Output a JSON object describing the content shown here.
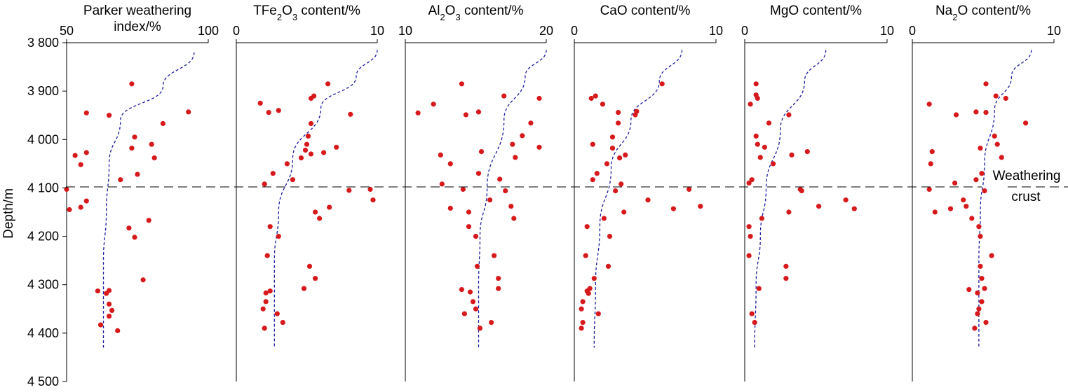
{
  "figure": {
    "y_axis_label": "Depth/m",
    "boundary_label_line1": "Weathering",
    "boundary_label_line2": "crust",
    "boundary_depth": 4100,
    "y_ticks": [
      "3 800",
      "3 900",
      "4 000",
      "4 100",
      "4 200",
      "4 300",
      "4 400",
      "4 500"
    ],
    "colors": {
      "points": "#d7191c",
      "trend": "#1a1aa0",
      "axes": "#000000"
    }
  },
  "chart_data": [
    {
      "type": "scatter",
      "title_parts": [
        {
          "t": "Parker weathering"
        }
      ],
      "title_line2": "index/%",
      "xlim": [
        50,
        100
      ],
      "x_ticks": [
        "50",
        "100"
      ],
      "ylim": [
        3800,
        4500
      ],
      "points": [
        [
          73,
          3885
        ],
        [
          57,
          3945
        ],
        [
          65,
          3950
        ],
        [
          93,
          3943
        ],
        [
          84,
          3967
        ],
        [
          74,
          3995
        ],
        [
          80,
          4010
        ],
        [
          73,
          4018
        ],
        [
          57,
          4027
        ],
        [
          81,
          4038
        ],
        [
          53,
          4033
        ],
        [
          55,
          4052
        ],
        [
          75,
          4072
        ],
        [
          69,
          4083
        ],
        [
          50,
          4103
        ],
        [
          57,
          4127
        ],
        [
          55,
          4140
        ],
        [
          51,
          4145
        ],
        [
          79,
          4167
        ],
        [
          72,
          4183
        ],
        [
          74,
          4202
        ],
        [
          77,
          4290
        ],
        [
          65,
          4312
        ],
        [
          61,
          4313
        ],
        [
          64,
          4318
        ],
        [
          65,
          4340
        ],
        [
          66,
          4353
        ],
        [
          65,
          4365
        ],
        [
          62,
          4383
        ],
        [
          68,
          4395
        ]
      ],
      "trend": [
        [
          95,
          3820
        ],
        [
          84,
          3890
        ],
        [
          69,
          3960
        ],
        [
          65,
          4050
        ],
        [
          64,
          4150
        ],
        [
          63,
          4250
        ],
        [
          63,
          4430
        ]
      ]
    },
    {
      "type": "scatter",
      "title_parts": [
        {
          "t": "TFe"
        },
        {
          "t": "2",
          "sub": true
        },
        {
          "t": "O"
        },
        {
          "t": "3",
          "sub": true
        },
        {
          "t": " content/%"
        }
      ],
      "xlim": [
        0,
        10
      ],
      "x_ticks": [
        "0",
        "10"
      ],
      "ylim": [
        3800,
        4500
      ],
      "points": [
        [
          6.5,
          3885
        ],
        [
          5.5,
          3910
        ],
        [
          5.3,
          3915
        ],
        [
          1.7,
          3925
        ],
        [
          3.0,
          3940
        ],
        [
          2.3,
          3944
        ],
        [
          8.1,
          3948
        ],
        [
          5.3,
          3967
        ],
        [
          5.1,
          3993
        ],
        [
          5.0,
          4010
        ],
        [
          7.1,
          4016
        ],
        [
          4.9,
          4022
        ],
        [
          6.2,
          4027
        ],
        [
          5.3,
          4030
        ],
        [
          4.6,
          4038
        ],
        [
          3.6,
          4050
        ],
        [
          2.6,
          4070
        ],
        [
          4.0,
          4083
        ],
        [
          2.0,
          4092
        ],
        [
          8.0,
          4105
        ],
        [
          9.5,
          4103
        ],
        [
          9.7,
          4125
        ],
        [
          6.6,
          4140
        ],
        [
          5.6,
          4150
        ],
        [
          5.9,
          4163
        ],
        [
          2.4,
          4180
        ],
        [
          3.0,
          4200
        ],
        [
          2.2,
          4240
        ],
        [
          5.2,
          4262
        ],
        [
          5.6,
          4287
        ],
        [
          4.8,
          4308
        ],
        [
          2.4,
          4313
        ],
        [
          2.1,
          4317
        ],
        [
          2.1,
          4335
        ],
        [
          1.9,
          4350
        ],
        [
          2.9,
          4360
        ],
        [
          2.0,
          4390
        ],
        [
          3.3,
          4378
        ]
      ],
      "trend": [
        [
          10,
          3815
        ],
        [
          8.5,
          3870
        ],
        [
          6,
          3935
        ],
        [
          4,
          4040
        ],
        [
          3,
          4150
        ],
        [
          2.7,
          4250
        ],
        [
          2.7,
          4430
        ]
      ]
    },
    {
      "type": "scatter",
      "title_parts": [
        {
          "t": "Al"
        },
        {
          "t": "2",
          "sub": true
        },
        {
          "t": "O"
        },
        {
          "t": "3",
          "sub": true
        },
        {
          "t": " content/%"
        }
      ],
      "xlim": [
        10,
        20
      ],
      "x_ticks": [
        "10",
        "20"
      ],
      "ylim": [
        3800,
        4500
      ],
      "points": [
        [
          14,
          3885
        ],
        [
          17,
          3910
        ],
        [
          19.5,
          3915
        ],
        [
          12,
          3927
        ],
        [
          10.9,
          3945
        ],
        [
          15.2,
          3943
        ],
        [
          14.3,
          3949
        ],
        [
          18.9,
          3966
        ],
        [
          18.3,
          3992
        ],
        [
          17.6,
          4010
        ],
        [
          19.5,
          4016
        ],
        [
          15.4,
          4025
        ],
        [
          17.8,
          4037
        ],
        [
          12.5,
          4032
        ],
        [
          13.2,
          4050
        ],
        [
          15.2,
          4070
        ],
        [
          16.7,
          4082
        ],
        [
          12.6,
          4092
        ],
        [
          14.1,
          4103
        ],
        [
          17.1,
          4106
        ],
        [
          16,
          4125
        ],
        [
          13.2,
          4142
        ],
        [
          14.5,
          4150
        ],
        [
          17.5,
          4138
        ],
        [
          17.7,
          4163
        ],
        [
          14.5,
          4180
        ],
        [
          15,
          4200
        ],
        [
          16.3,
          4240
        ],
        [
          15.1,
          4262
        ],
        [
          16.6,
          4287
        ],
        [
          14,
          4310
        ],
        [
          16.6,
          4308
        ],
        [
          14.6,
          4315
        ],
        [
          14.8,
          4335
        ],
        [
          15,
          4350
        ],
        [
          14.2,
          4360
        ],
        [
          16.1,
          4378
        ],
        [
          15.3,
          4390
        ]
      ],
      "trend": [
        [
          20,
          3815
        ],
        [
          18.5,
          3870
        ],
        [
          17,
          3960
        ],
        [
          15.8,
          4100
        ],
        [
          15.3,
          4200
        ],
        [
          15.2,
          4300
        ],
        [
          15.2,
          4430
        ]
      ]
    },
    {
      "type": "scatter",
      "title_parts": [
        {
          "t": "CaO content/%"
        }
      ],
      "xlim": [
        0,
        10
      ],
      "x_ticks": [
        "0",
        "10"
      ],
      "ylim": [
        3800,
        4500
      ],
      "points": [
        [
          6.2,
          3885
        ],
        [
          1.5,
          3910
        ],
        [
          1.2,
          3915
        ],
        [
          2.0,
          3927
        ],
        [
          4.4,
          3942
        ],
        [
          3.1,
          3944
        ],
        [
          4.3,
          3949
        ],
        [
          3.1,
          3966
        ],
        [
          2.7,
          3995
        ],
        [
          1.3,
          4010
        ],
        [
          2.7,
          4018
        ],
        [
          3.6,
          4032
        ],
        [
          3.2,
          4038
        ],
        [
          2.3,
          4050
        ],
        [
          1.6,
          4070
        ],
        [
          1.3,
          4083
        ],
        [
          3.3,
          4092
        ],
        [
          2.9,
          4106
        ],
        [
          8.1,
          4103
        ],
        [
          5.2,
          4125
        ],
        [
          8.9,
          4138
        ],
        [
          7.0,
          4143
        ],
        [
          3.5,
          4150
        ],
        [
          2.1,
          4163
        ],
        [
          0.9,
          4180
        ],
        [
          2.5,
          4200
        ],
        [
          0.8,
          4240
        ],
        [
          2.4,
          4262
        ],
        [
          1.4,
          4287
        ],
        [
          1.1,
          4308
        ],
        [
          0.9,
          4313
        ],
        [
          1.0,
          4318
        ],
        [
          0.6,
          4335
        ],
        [
          0.5,
          4350
        ],
        [
          1.7,
          4360
        ],
        [
          0.6,
          4378
        ],
        [
          0.5,
          4390
        ]
      ],
      "trend": [
        [
          7.6,
          3815
        ],
        [
          6,
          3880
        ],
        [
          4,
          3960
        ],
        [
          2.6,
          4060
        ],
        [
          1.8,
          4180
        ],
        [
          1.5,
          4300
        ],
        [
          1.4,
          4430
        ]
      ]
    },
    {
      "type": "scatter",
      "title_parts": [
        {
          "t": "MgO content/%"
        }
      ],
      "xlim": [
        0,
        10
      ],
      "x_ticks": [
        "0",
        "10"
      ],
      "ylim": [
        3800,
        4500
      ],
      "points": [
        [
          0.8,
          3885
        ],
        [
          0.8,
          3908
        ],
        [
          0.9,
          3915
        ],
        [
          0.4,
          3927
        ],
        [
          3.1,
          3949
        ],
        [
          1.7,
          3966
        ],
        [
          0.8,
          3993
        ],
        [
          0.9,
          4010
        ],
        [
          1.4,
          4016
        ],
        [
          4.4,
          4025
        ],
        [
          3.3,
          4032
        ],
        [
          1.1,
          4037
        ],
        [
          2.0,
          4050
        ],
        [
          0.5,
          4083
        ],
        [
          0.3,
          4090
        ],
        [
          3.9,
          4103
        ],
        [
          4.0,
          4106
        ],
        [
          7.1,
          4125
        ],
        [
          5.2,
          4138
        ],
        [
          7.7,
          4143
        ],
        [
          3.1,
          4150
        ],
        [
          1.2,
          4163
        ],
        [
          0.3,
          4180
        ],
        [
          0.4,
          4200
        ],
        [
          0.3,
          4240
        ],
        [
          2.9,
          4262
        ],
        [
          2.9,
          4287
        ],
        [
          1.0,
          4308
        ],
        [
          0.5,
          4360
        ],
        [
          0.7,
          4378
        ]
      ],
      "trend": [
        [
          5.7,
          3815
        ],
        [
          4.2,
          3880
        ],
        [
          2.5,
          3980
        ],
        [
          1.5,
          4100
        ],
        [
          1.1,
          4200
        ],
        [
          0.8,
          4300
        ],
        [
          0.7,
          4430
        ]
      ]
    },
    {
      "type": "scatter",
      "title_parts": [
        {
          "t": "Na"
        },
        {
          "t": "2",
          "sub": true
        },
        {
          "t": "O content/%"
        }
      ],
      "xlim": [
        0,
        10
      ],
      "x_ticks": [
        "0",
        "10"
      ],
      "ylim": [
        3800,
        4500
      ],
      "points": [
        [
          5.2,
          3885
        ],
        [
          5.9,
          3910
        ],
        [
          6.6,
          3915
        ],
        [
          1.2,
          3927
        ],
        [
          4.5,
          3943
        ],
        [
          5.2,
          3944
        ],
        [
          3.1,
          3949
        ],
        [
          8.0,
          3966
        ],
        [
          5.8,
          3993
        ],
        [
          6.0,
          4010
        ],
        [
          4.8,
          4018
        ],
        [
          1.4,
          4025
        ],
        [
          6.3,
          4037
        ],
        [
          1.3,
          4050
        ],
        [
          4.9,
          4070
        ],
        [
          4.5,
          4083
        ],
        [
          3.0,
          4090
        ],
        [
          1.2,
          4103
        ],
        [
          5.1,
          4106
        ],
        [
          3.6,
          4125
        ],
        [
          3.8,
          4138
        ],
        [
          2.7,
          4143
        ],
        [
          1.6,
          4150
        ],
        [
          4.2,
          4163
        ],
        [
          4.7,
          4180
        ],
        [
          4.8,
          4200
        ],
        [
          5.6,
          4240
        ],
        [
          4.8,
          4262
        ],
        [
          4.9,
          4287
        ],
        [
          5.1,
          4308
        ],
        [
          4.0,
          4310
        ],
        [
          4.6,
          4317
        ],
        [
          4.9,
          4335
        ],
        [
          4.7,
          4350
        ],
        [
          4.6,
          4360
        ],
        [
          5.2,
          4378
        ],
        [
          4.4,
          4390
        ]
      ],
      "trend": [
        [
          8.4,
          3815
        ],
        [
          7,
          3870
        ],
        [
          5.8,
          3940
        ],
        [
          5.1,
          4050
        ],
        [
          4.8,
          4150
        ],
        [
          4.7,
          4250
        ],
        [
          4.7,
          4430
        ]
      ]
    }
  ]
}
